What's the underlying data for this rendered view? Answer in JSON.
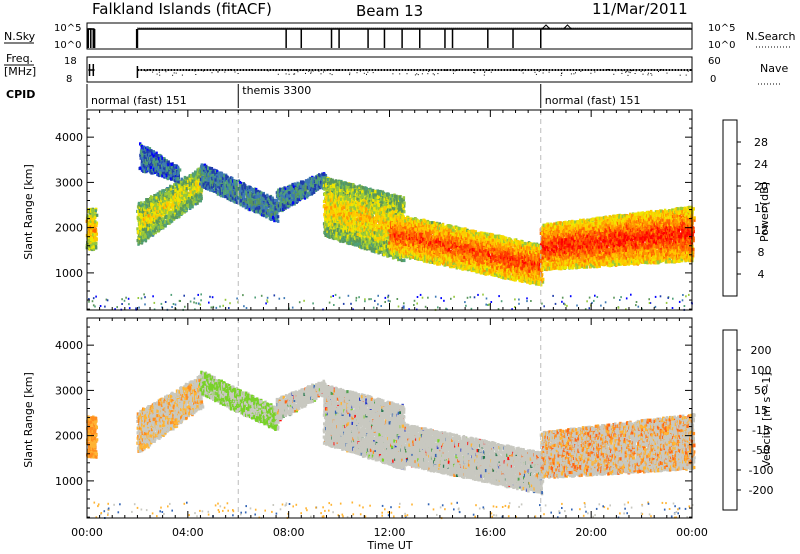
{
  "header": {
    "title": "Falkland Islands (fitACF)",
    "beam": "Beam 13",
    "date": "11/Mar/2011"
  },
  "status_panels": {
    "nsky_label": "N.Sky",
    "nsky_ticks": [
      "10^5",
      "10^0"
    ],
    "nsearch_label": "N.Search",
    "nsearch_ticks": [
      "10^5",
      "10^0"
    ],
    "freq_label": "Freq.",
    "freq_unit": "[MHz]",
    "freq_ticks": [
      "18",
      "8"
    ],
    "nave_label": "Nave",
    "nave_ticks": [
      "60",
      "0"
    ],
    "cpid_label": "CPID",
    "cpid_segments": [
      {
        "label": "normal (fast) 151",
        "start_hour": 0,
        "end_hour": 6
      },
      {
        "label": "themis 3300",
        "start_hour": 6,
        "end_hour": 18
      },
      {
        "label": "normal (fast) 151",
        "start_hour": 18,
        "end_hour": 24
      }
    ],
    "nsky_gaps_hours": [
      0.15,
      0.25,
      1.97,
      7.9,
      8.5,
      9.7,
      10.0,
      11.15,
      11.8,
      12.5,
      13.2,
      14.2,
      14.5,
      15.9,
      16.9,
      18.0
    ],
    "search_trace_bumps_hours": [
      18.05,
      18.9
    ]
  },
  "chart_data": [
    {
      "type": "heatmap",
      "panel": "power",
      "ylabel": "Slant Range [km]",
      "yticks": [
        1000,
        2000,
        3000,
        4000
      ],
      "ylim": [
        180,
        4600
      ],
      "xlim": [
        0,
        24
      ],
      "colorbar_label": "Power [dB]",
      "colorbar_ticks": [
        "28",
        "24",
        "20",
        "16",
        "12",
        "8",
        "4"
      ],
      "colorbar_colors": [
        "#0000ff",
        "#1e3caa",
        "#3c78b4",
        "#50a078",
        "#5a965a",
        "#96c83c",
        "#f0e600",
        "#ffc800",
        "#ff9600",
        "#ff6400",
        "#ff3200",
        "#ff0000"
      ],
      "bands": [
        {
          "hours": [
            0,
            0.3
          ],
          "center_km": [
            2000,
            2000
          ],
          "width_km": [
            900,
            900
          ],
          "intensity": 0.6
        },
        {
          "hours": [
            2.0,
            4.5
          ],
          "center_km": [
            2100,
            3000
          ],
          "width_km": [
            900,
            700
          ],
          "intensity": 0.5
        },
        {
          "hours": [
            2.1,
            3.6
          ],
          "center_km": [
            3600,
            3200
          ],
          "width_km": [
            600,
            300
          ],
          "intensity": 0.2
        },
        {
          "hours": [
            4.5,
            7.5
          ],
          "center_km": [
            3200,
            2400
          ],
          "width_km": [
            500,
            500
          ],
          "intensity": 0.25
        },
        {
          "hours": [
            7.5,
            9.4
          ],
          "center_km": [
            2600,
            3100
          ],
          "width_km": [
            500,
            300
          ],
          "intensity": 0.25
        },
        {
          "hours": [
            9.4,
            12.5
          ],
          "center_km": [
            2500,
            2000
          ],
          "width_km": [
            1300,
            1400
          ],
          "intensity": 0.55
        },
        {
          "hours": [
            12.0,
            18.0
          ],
          "center_km": [
            1900,
            1200
          ],
          "width_km": [
            900,
            900
          ],
          "intensity": 0.75
        },
        {
          "hours": [
            18.0,
            24.0
          ],
          "center_km": [
            1600,
            1900
          ],
          "width_km": [
            1000,
            1200
          ],
          "intensity": 0.8
        }
      ],
      "ground_scatter_km": [
        200,
        500
      ]
    },
    {
      "type": "heatmap",
      "panel": "velocity",
      "ylabel": "Slant Range [km]",
      "yticks": [
        1000,
        2000,
        3000,
        4000
      ],
      "ylim": [
        180,
        4600
      ],
      "xlim": [
        0,
        24
      ],
      "colorbar_label": "Velocity [m s^-1]",
      "colorbar_ticks": [
        "200",
        "100",
        "50",
        "15",
        "-15",
        "-50",
        "-100",
        "-200"
      ],
      "colorbar_colors": [
        "#1e32c8",
        "#3264b4",
        "#287850",
        "#50a050",
        "#78d228",
        "#c8c8c0",
        "#ffb432",
        "#ff8c1e",
        "#ff6414",
        "#ff0a0a"
      ],
      "ground_scatter_color": "#c8c8c0",
      "bands": [
        {
          "hours": [
            0,
            0.3
          ],
          "center_km": [
            2000,
            2000
          ],
          "width_km": [
            900,
            900
          ],
          "vel_class": "neg"
        },
        {
          "hours": [
            2.0,
            4.5
          ],
          "center_km": [
            2100,
            3000
          ],
          "width_km": [
            900,
            700
          ],
          "vel_class": "mixed"
        },
        {
          "hours": [
            4.5,
            7.5
          ],
          "center_km": [
            3200,
            2400
          ],
          "width_km": [
            500,
            500
          ],
          "vel_class": "pos"
        },
        {
          "hours": [
            7.5,
            9.4
          ],
          "center_km": [
            2600,
            3100
          ],
          "width_km": [
            500,
            300
          ],
          "vel_class": "gs"
        },
        {
          "hours": [
            9.4,
            12.5
          ],
          "center_km": [
            2500,
            2000
          ],
          "width_km": [
            1300,
            1400
          ],
          "vel_class": "gs"
        },
        {
          "hours": [
            12.0,
            18.0
          ],
          "center_km": [
            1900,
            1200
          ],
          "width_km": [
            900,
            900
          ],
          "vel_class": "gs"
        },
        {
          "hours": [
            18.0,
            24.0
          ],
          "center_km": [
            1600,
            1900
          ],
          "width_km": [
            1000,
            1200
          ],
          "vel_class": "gs_neg"
        }
      ]
    }
  ],
  "x_axis": {
    "label": "Time UT",
    "ticks": [
      "00:00",
      "04:00",
      "08:00",
      "12:00",
      "16:00",
      "20:00",
      "00:00"
    ],
    "tick_hours": [
      0,
      4,
      8,
      12,
      16,
      20,
      24
    ]
  }
}
